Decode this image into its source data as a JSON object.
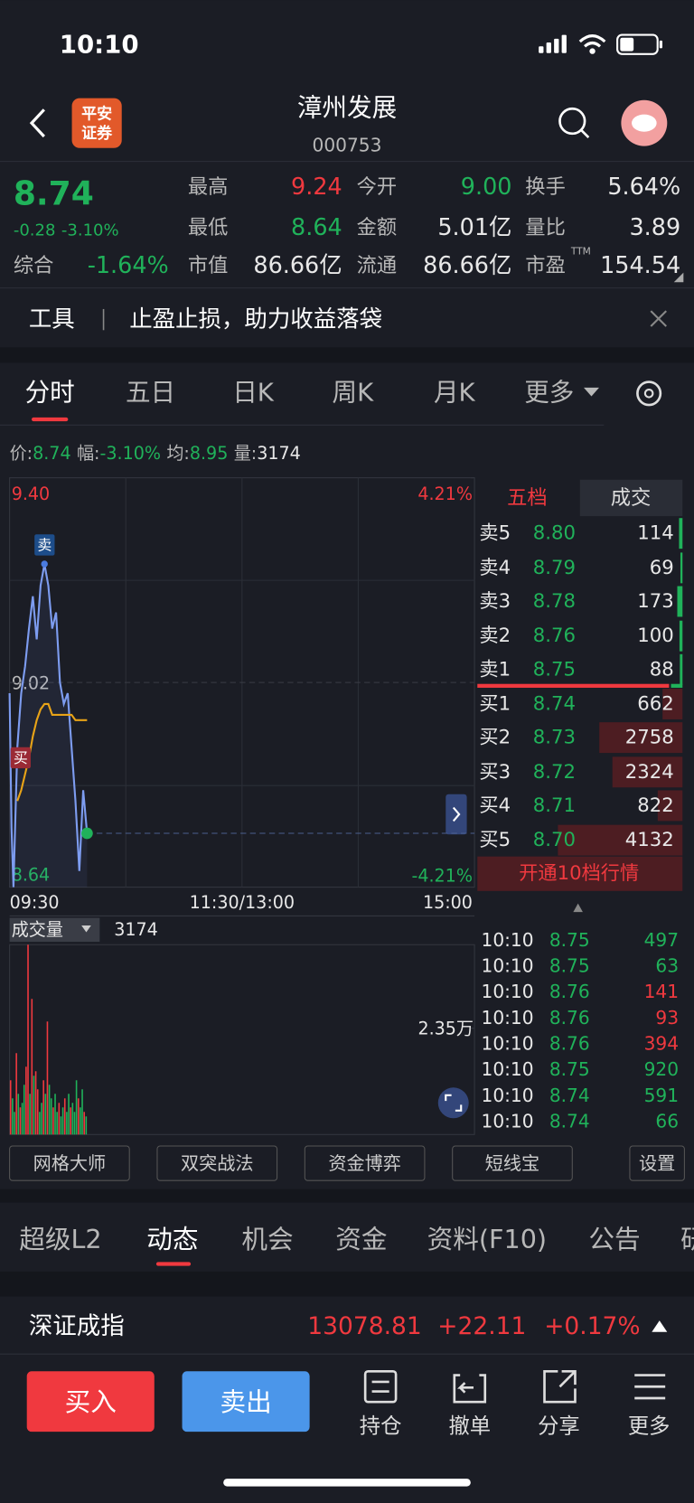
{
  "status_bar": {
    "time": "10:10"
  },
  "header": {
    "logo": [
      "平安",
      "证券"
    ],
    "title": "漳州发展",
    "code": "000753"
  },
  "quote": {
    "price": "8.74",
    "change": "-0.28",
    "change_pct": "-3.10%",
    "rows": [
      [
        {
          "label": "最高",
          "value": "9.24",
          "color": "#f0393f"
        },
        {
          "label": "今开",
          "value": "9.00",
          "color": "#20b25a"
        },
        {
          "label": "换手",
          "value": "5.64%",
          "color": "#e8e8e8"
        }
      ],
      [
        {
          "label": "最低",
          "value": "8.64",
          "color": "#20b25a"
        },
        {
          "label": "金额",
          "value": "5.01亿",
          "color": "#e8e8e8"
        },
        {
          "label": "量比",
          "value": "3.89",
          "color": "#e8e8e8"
        }
      ],
      [
        {
          "label": "综合",
          "value": "-1.64%",
          "color": "#20b25a"
        },
        {
          "label": "市值",
          "value": "86.66亿",
          "color": "#e8e8e8"
        },
        {
          "label": "流通",
          "value": "86.66亿",
          "color": "#e8e8e8"
        },
        {
          "label": "市盈",
          "value": "154.54",
          "color": "#e8e8e8"
        }
      ]
    ],
    "pe_suffix": "TTM"
  },
  "banner": {
    "tag": "工具",
    "text": "止盈止损，助力收益落袋"
  },
  "chart_tabs": [
    "分时",
    "五日",
    "日K",
    "周K",
    "月K",
    "更多"
  ],
  "info": [
    {
      "label": "价:",
      "value": "8.74",
      "color": "#20b25a"
    },
    {
      "label": "幅:",
      "value": "-3.10%",
      "color": "#20b25a"
    },
    {
      "label": "均:",
      "value": "8.95",
      "color": "#20b25a"
    },
    {
      "label": "量:",
      "value": "3174",
      "color": "#e8e8e8"
    }
  ],
  "intraday": {
    "type": "line",
    "xlim": [
      0,
      240
    ],
    "xticks": [
      {
        "value": 0,
        "label": "09:30"
      },
      {
        "value": 120,
        "label": "11:30/13:00"
      },
      {
        "value": 240,
        "label": "15:00"
      }
    ],
    "ylim": [
      8.64,
      9.4
    ],
    "yticks": [
      {
        "value": 9.4,
        "label": "9.40"
      },
      9.02,
      8.64
    ],
    "y2lim": [
      -4.21,
      4.21
    ],
    "y2ticks": [
      {
        "value": 4.21,
        "label": "4.21%"
      },
      {
        "value": -4.21,
        "label": "-4.21%"
      }
    ],
    "x": [
      0,
      1,
      2,
      4,
      6,
      8,
      10,
      12,
      14,
      16,
      18,
      20,
      22,
      24,
      26,
      28,
      30,
      32,
      34,
      36,
      38,
      40
    ],
    "series": [
      {
        "name": "价",
        "color": "#7d9cf0",
        "values": [
          9.0,
          8.75,
          8.64,
          8.9,
          9.0,
          9.05,
          9.12,
          9.18,
          9.1,
          9.2,
          9.24,
          9.2,
          9.12,
          9.15,
          9.02,
          8.98,
          9.0,
          8.9,
          8.8,
          8.67,
          8.82,
          8.74
        ]
      },
      {
        "name": "均",
        "color": "#e8a317",
        "values": [
          null,
          null,
          null,
          8.8,
          8.82,
          8.85,
          8.88,
          8.92,
          8.95,
          8.97,
          8.98,
          8.98,
          8.96,
          8.96,
          8.96,
          8.96,
          8.96,
          8.96,
          8.95,
          8.95,
          8.95,
          8.95
        ]
      }
    ],
    "sell_marker": "卖",
    "buy_marker": "买"
  },
  "volume": {
    "label": "成交量",
    "current": "3174",
    "ylim": [
      0,
      42000
    ],
    "yticks": [
      {
        "value": 23500,
        "label": "2.35万"
      }
    ],
    "values": [
      12000,
      8000,
      5000,
      18000,
      9000,
      6000,
      7000,
      11000,
      15000,
      42000,
      9000,
      30000,
      13000,
      14000,
      10000,
      5000,
      7000,
      12000,
      9000,
      25000,
      11000,
      8000,
      6000,
      9000,
      5000,
      7000,
      4000,
      6000,
      8000,
      5000,
      9000,
      6000,
      7000,
      5000,
      12000,
      8000,
      6000,
      10000,
      5000,
      4000
    ],
    "rise": [
      1,
      0,
      0,
      1,
      0,
      1,
      0,
      0,
      1,
      1,
      0,
      1,
      0,
      1,
      1,
      0,
      0,
      1,
      0,
      1,
      0,
      0,
      1,
      0,
      0,
      1,
      0,
      0,
      1,
      0,
      0,
      1,
      0,
      0,
      0,
      1,
      0,
      0,
      1,
      0
    ]
  },
  "order_book": {
    "tabs": [
      "五档",
      "成交"
    ],
    "asks": [
      {
        "label": "卖5",
        "price": "8.80",
        "volume": 114
      },
      {
        "label": "卖4",
        "price": "8.79",
        "volume": 69
      },
      {
        "label": "卖3",
        "price": "8.78",
        "volume": 173
      },
      {
        "label": "卖2",
        "price": "8.76",
        "volume": 100
      },
      {
        "label": "卖1",
        "price": "8.75",
        "volume": 88
      }
    ],
    "bids": [
      {
        "label": "买1",
        "price": "8.74",
        "volume": 662
      },
      {
        "label": "买2",
        "price": "8.73",
        "volume": 2758
      },
      {
        "label": "买3",
        "price": "8.72",
        "volume": 2324
      },
      {
        "label": "买4",
        "price": "8.71",
        "volume": 822
      },
      {
        "label": "买5",
        "price": "8.70",
        "volume": 4132
      }
    ],
    "upgrade": "开通10档行情"
  },
  "trades": [
    {
      "time": "10:10",
      "price": "8.75",
      "volume": 497,
      "color": "#20b25a"
    },
    {
      "time": "10:10",
      "price": "8.75",
      "volume": 63,
      "color": "#20b25a"
    },
    {
      "time": "10:10",
      "price": "8.76",
      "volume": 141,
      "color": "#f0393f"
    },
    {
      "time": "10:10",
      "price": "8.76",
      "volume": 93,
      "color": "#f0393f"
    },
    {
      "time": "10:10",
      "price": "8.76",
      "volume": 394,
      "color": "#f0393f"
    },
    {
      "time": "10:10",
      "price": "8.75",
      "volume": 920,
      "color": "#20b25a"
    },
    {
      "time": "10:10",
      "price": "8.74",
      "volume": 591,
      "color": "#20b25a"
    },
    {
      "time": "10:10",
      "price": "8.74",
      "volume": 66,
      "color": "#20b25a"
    }
  ],
  "tools": [
    "网格大师",
    "双突战法",
    "资金博弈",
    "短线宝",
    "设置"
  ],
  "section_tabs": [
    "超级L2",
    "动态",
    "机会",
    "资金",
    "资料(F10)",
    "公告",
    "研"
  ],
  "index_bar": {
    "name": "深证成指",
    "value": "13078.81",
    "change": "+22.11",
    "change_pct": "+0.17%"
  },
  "actions": {
    "buy": "买入",
    "sell": "卖出",
    "items": [
      "持仓",
      "撤单",
      "分享",
      "更多"
    ]
  }
}
